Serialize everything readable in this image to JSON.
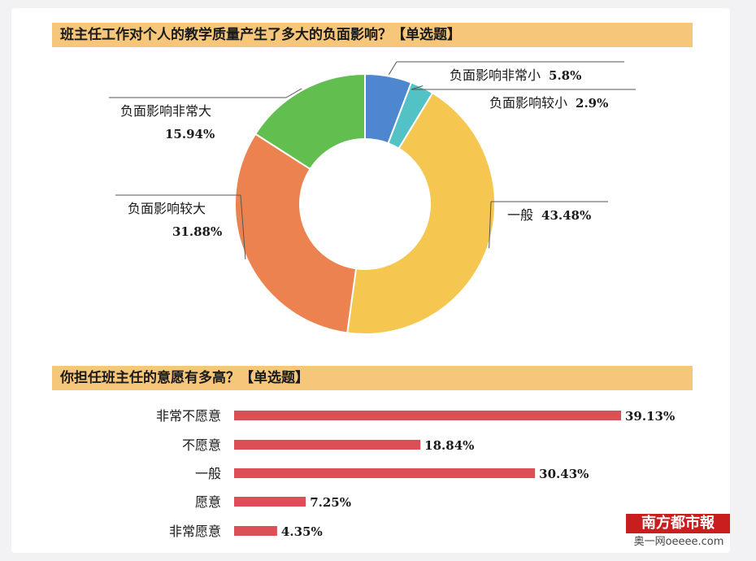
{
  "questions": {
    "q1_title": "班主任工作对个人的教学质量产生了多大的负面影响？【单选题】",
    "q2_title": "你担任班主任的意愿有多高？【单选题】"
  },
  "watermark": {
    "name": "南方都市報",
    "site": "奥一网oeeee.com"
  },
  "chart_data": [
    {
      "type": "pie",
      "title": "班主任工作对个人的教学质量产生了多大的负面影响？【单选题】",
      "donut": true,
      "slices": [
        {
          "label": "负面影响非常小",
          "value": 5.8,
          "value_label": "5.8%",
          "color": "#4e86cf"
        },
        {
          "label": "负面影响较小",
          "value": 2.9,
          "value_label": "2.9%",
          "color": "#53c2c6"
        },
        {
          "label": "一般",
          "value": 43.48,
          "value_label": "43.48%",
          "color": "#f5c751"
        },
        {
          "label": "负面影响较大",
          "value": 31.88,
          "value_label": "31.88%",
          "color": "#ec8250"
        },
        {
          "label": "负面影响非常大",
          "value": 15.94,
          "value_label": "15.94%",
          "color": "#63be50"
        }
      ]
    },
    {
      "type": "bar",
      "orientation": "horizontal",
      "title": "你担任班主任的意愿有多高？【单选题】",
      "categories": [
        "非常不愿意",
        "不愿意",
        "一般",
        "愿意",
        "非常愿意"
      ],
      "values": [
        39.13,
        18.84,
        30.43,
        7.25,
        4.35
      ],
      "value_labels": [
        "39.13%",
        "18.84%",
        "30.43%",
        "7.25%",
        "4.35%"
      ],
      "color": "#dc4f57"
    }
  ]
}
